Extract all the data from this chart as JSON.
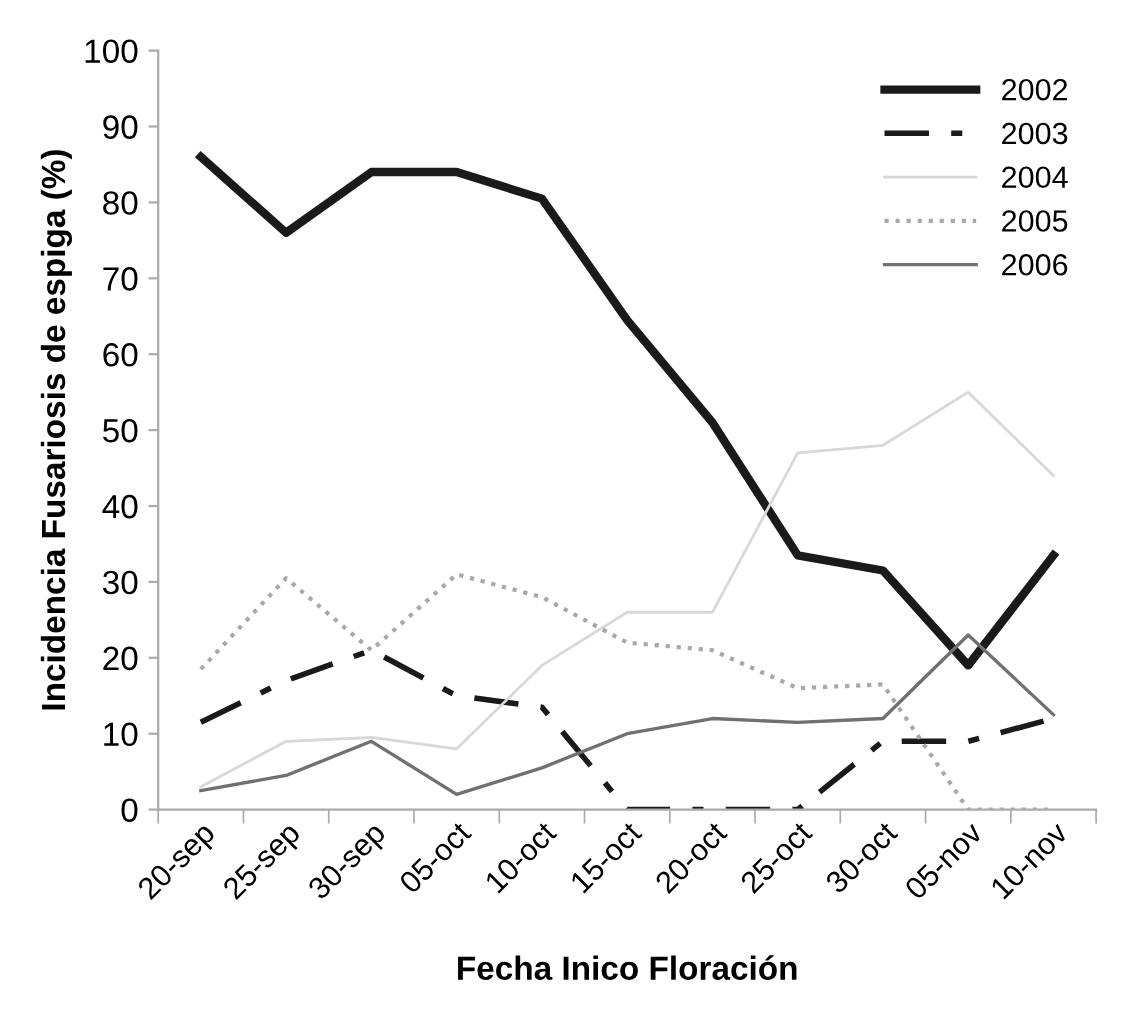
{
  "chart_data": {
    "type": "line",
    "xlabel": "Fecha Inico Floración",
    "ylabel": "Incidencia Fusariosis de espiga (%)",
    "categories": [
      "20-sep",
      "25-sep",
      "30-sep",
      "05-oct",
      "10-oct",
      "15-oct",
      "20-oct",
      "25-oct",
      "30-oct",
      "05-nov",
      "10-nov"
    ],
    "ylim": [
      0,
      100
    ],
    "yticks": [
      0,
      10,
      20,
      30,
      40,
      50,
      60,
      70,
      80,
      90,
      100
    ],
    "grid": false,
    "legend": "top right",
    "marker": "none",
    "series": [
      {
        "name": "2002",
        "color": "#1a1a1a",
        "line_style": "solid",
        "values": [
          86,
          76,
          84,
          84,
          80.5,
          64.5,
          51,
          33.5,
          31.5,
          19,
          33.5
        ]
      },
      {
        "name": "2003",
        "color": "#1a1a1a",
        "line_style": "dashdot",
        "values": [
          11.5,
          17,
          21,
          15,
          13.5,
          0,
          0,
          0,
          9,
          9,
          12
        ]
      },
      {
        "name": "2004",
        "color": "#d8d8d8",
        "line_style": "solid",
        "values": [
          3,
          9,
          9.5,
          8,
          19,
          26,
          26,
          47,
          48,
          55,
          44
        ]
      },
      {
        "name": "2005",
        "color": "#a8a8a8",
        "line_style": "dotted",
        "values": [
          18.5,
          30.5,
          21,
          31,
          28,
          22,
          21,
          16,
          16.5,
          0,
          0
        ]
      },
      {
        "name": "2006",
        "color": "#707070",
        "line_style": "solid",
        "values": [
          2.5,
          4.5,
          9,
          2,
          5.5,
          10,
          12,
          11.5,
          12,
          23,
          12.5
        ]
      }
    ]
  }
}
